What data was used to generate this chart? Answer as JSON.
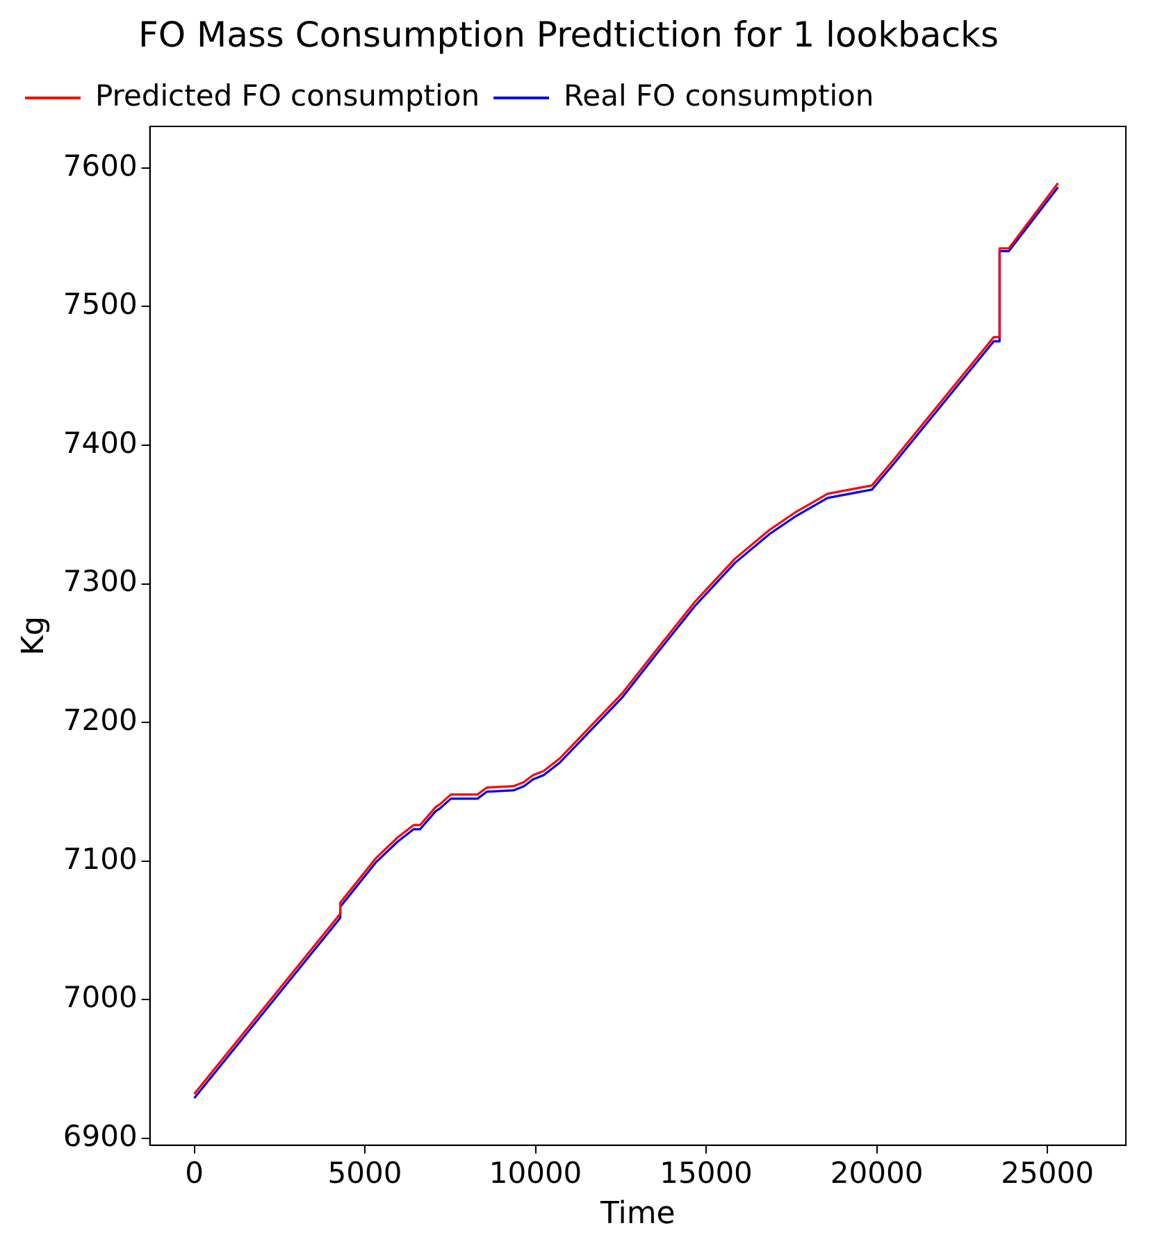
{
  "chart_data": {
    "type": "line",
    "title": "FO Mass Consumption Predtiction for 1 lookbacks",
    "xlabel": "Time",
    "ylabel": "Kg",
    "series": [
      {
        "name": "Predicted FO consumption",
        "color": "#ff0000",
        "x": [
          0,
          4280,
          4280,
          5320,
          5960,
          6430,
          6620,
          7075,
          7200,
          7520,
          8300,
          8570,
          9350,
          9660,
          9930,
          10240,
          10710,
          11410,
          12540,
          13630,
          14670,
          15840,
          16860,
          17640,
          18560,
          19860,
          20510,
          23430,
          23600,
          23600,
          23870,
          25310
        ],
        "values": [
          6932,
          7062,
          7070,
          7102,
          7117,
          7126,
          7126,
          7139,
          7141,
          7148,
          7148,
          7153,
          7154,
          7157,
          7162,
          7165,
          7174,
          7192,
          7221,
          7255,
          7287,
          7318,
          7339,
          7352,
          7365,
          7371,
          7390,
          7478,
          7478,
          7542,
          7542,
          7589
        ]
      },
      {
        "name": "Real FO consumption",
        "color": "#0000ff",
        "x": [
          0,
          4280,
          4280,
          5320,
          5960,
          6430,
          6620,
          7075,
          7200,
          7520,
          8300,
          8570,
          9350,
          9660,
          9930,
          10240,
          10710,
          11410,
          12540,
          13630,
          14670,
          15840,
          16860,
          17640,
          18560,
          19860,
          20510,
          23430,
          23600,
          23600,
          23870,
          25310
        ],
        "values": [
          6929,
          7059,
          7067,
          7099,
          7114,
          7123,
          7123,
          7136,
          7138,
          7145,
          7145,
          7150,
          7151,
          7154,
          7159,
          7162,
          7171,
          7189,
          7218,
          7252,
          7284,
          7315,
          7336,
          7349,
          7362,
          7368,
          7387,
          7475,
          7475,
          7540,
          7540,
          7586
        ]
      }
    ],
    "xlim": [
      -1300,
      27300
    ],
    "xticks": [
      0,
      5000,
      10000,
      15000,
      20000,
      25000
    ],
    "ylim": [
      6895,
      7630
    ],
    "yticks": [
      6900,
      7000,
      7100,
      7200,
      7300,
      7400,
      7500,
      7600
    ],
    "grid": false,
    "legend": "top left",
    "marker": "none",
    "line_style": "solid"
  }
}
